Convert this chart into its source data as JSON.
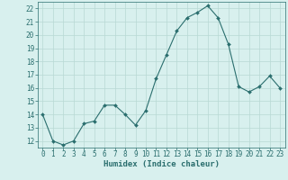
{
  "x": [
    0,
    1,
    2,
    3,
    4,
    5,
    6,
    7,
    8,
    9,
    10,
    11,
    12,
    13,
    14,
    15,
    16,
    17,
    18,
    19,
    20,
    21,
    22,
    23
  ],
  "y": [
    14,
    12,
    11.7,
    12,
    13.3,
    13.5,
    14.7,
    14.7,
    14.0,
    13.2,
    14.3,
    16.7,
    18.5,
    20.3,
    21.3,
    21.7,
    22.2,
    21.3,
    19.3,
    16.1,
    15.7,
    16.1,
    16.9,
    16.0
  ],
  "line_color": "#2a6e6e",
  "marker": "D",
  "marker_size": 2,
  "bg_color": "#d8f0ee",
  "grid_color": "#b8d8d4",
  "spine_color": "#2a6e6e",
  "tick_color": "#2a6e6e",
  "xlabel": "Humidex (Indice chaleur)",
  "xlim": [
    -0.5,
    23.5
  ],
  "ylim": [
    11.5,
    22.5
  ],
  "yticks": [
    12,
    13,
    14,
    15,
    16,
    17,
    18,
    19,
    20,
    21,
    22
  ],
  "xticks": [
    0,
    1,
    2,
    3,
    4,
    5,
    6,
    7,
    8,
    9,
    10,
    11,
    12,
    13,
    14,
    15,
    16,
    17,
    18,
    19,
    20,
    21,
    22,
    23
  ],
  "font_color": "#2a6e6e",
  "label_fontsize": 6.5,
  "tick_fontsize": 5.5
}
